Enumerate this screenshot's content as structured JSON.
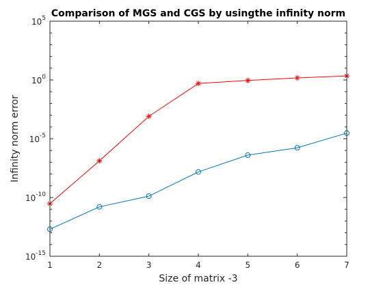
{
  "chart_data": {
    "type": "line",
    "title": "Comparison of MGS and CGS by usingthe infinity norm",
    "xlabel": "Size of matrix -3",
    "ylabel": "Infinity norm error",
    "x": [
      1,
      2,
      3,
      4,
      5,
      6,
      7
    ],
    "xlim": [
      1,
      7
    ],
    "xticks": [
      "1",
      "2",
      "3",
      "4",
      "5",
      "6",
      "7"
    ],
    "yscale": "log",
    "ylim": [
      1e-15,
      100000.0
    ],
    "yticks": [
      {
        "value": 1e-15,
        "base": "10",
        "exp": "-15"
      },
      {
        "value": 1e-10,
        "base": "10",
        "exp": "-10"
      },
      {
        "value": 1e-05,
        "base": "10",
        "exp": "-5"
      },
      {
        "value": 1,
        "base": "10",
        "exp": "0"
      },
      {
        "value": 100000.0,
        "base": "10",
        "exp": "5"
      }
    ],
    "grid": false,
    "legend": "none",
    "series": [
      {
        "marker": "star",
        "color": "#ff0000",
        "values": [
          3e-11,
          1.3e-07,
          0.0008,
          0.5,
          0.9,
          1.5,
          2.2
        ]
      },
      {
        "marker": "circle",
        "color": "#0072bd",
        "values": [
          2e-13,
          1.6e-11,
          1.3e-10,
          1.5e-08,
          4e-07,
          1.7e-06,
          3e-05
        ]
      }
    ]
  }
}
